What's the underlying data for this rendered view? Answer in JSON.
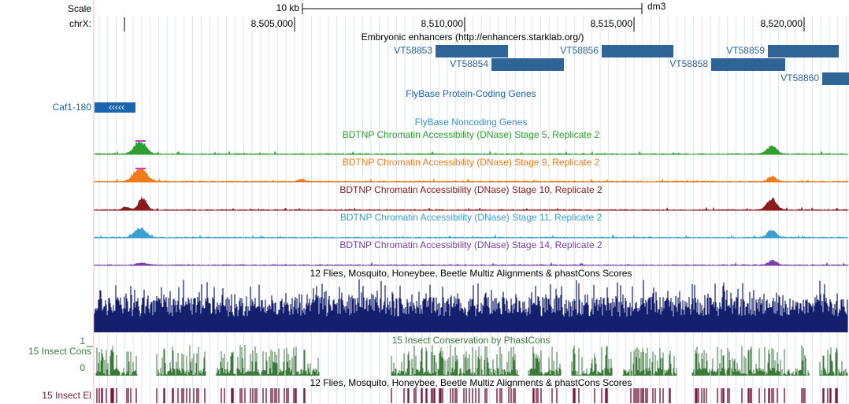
{
  "header": {
    "scale": "Scale",
    "chrom": "chrX:",
    "bar": "10 kb",
    "assembly": "dm3",
    "positions": [
      "8,505,000",
      "8,510,000",
      "8,515,000",
      "8,520,000"
    ]
  },
  "enhancers": {
    "title": "Embryonic enhancers (http://enhancers.starklab.org/)",
    "features": [
      "VT58853",
      "VT58854",
      "VT58856",
      "VT58858",
      "VT58859",
      "VT58860"
    ]
  },
  "genes": {
    "title": "FlyBase Protein-Coding Genes",
    "gene": "Caf1-180",
    "noncoding": "FlyBase Noncoding Genes"
  },
  "dnase": [
    "BDTNP Chromatin Accessibility (DNase) Stage 5, Replicate 2",
    "BDTNP Chromatin Accessibility (DNase) Stage 9, Replicate 2",
    "BDTNP Chromatin Accessibility (DNase) Stage 10, Replicate 2",
    "BDTNP Chromatin Accessibility (DNase) Stage 11, Replicate 2",
    "BDTNP Chromatin Accessibility (DNase) Stage 14, Replicate 2"
  ],
  "multiz": {
    "title": "12 Flies, Mosquito, Honeybee, Beetle Multiz Alignments & phastCons Scores",
    "conservation": "15 Insect Conservation by PhastCons",
    "cons_label": "15 Insect Cons",
    "cons_max": "1",
    "cons_min": "0",
    "elements_label": "15 Insect El"
  }
}
